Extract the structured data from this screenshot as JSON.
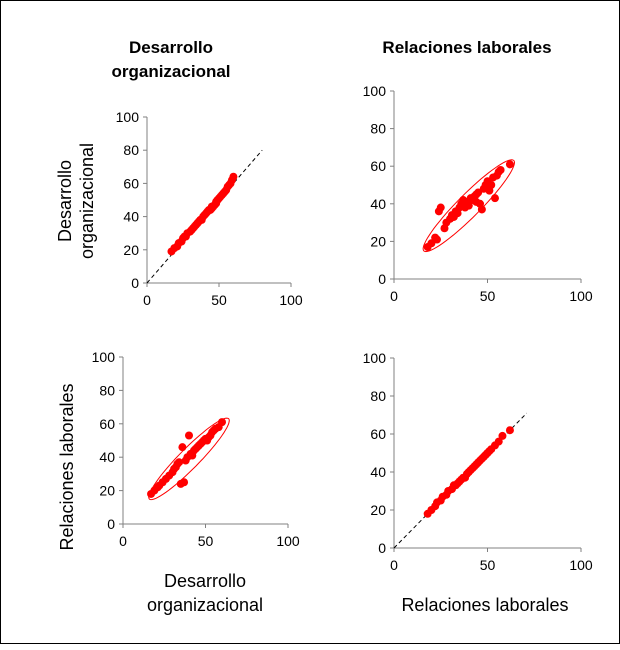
{
  "column_titles": [
    [
      "Desarrollo",
      "organizacional"
    ],
    [
      "Relaciones laborales"
    ]
  ],
  "row_axis_titles": [
    [
      "Desarrollo",
      "organizacional"
    ],
    [
      "Relaciones laborales"
    ]
  ],
  "x_axis_titles": [
    [
      "Desarrollo",
      "organizacional"
    ],
    [
      "Relaciones laborales"
    ]
  ],
  "colors": {
    "points": "#ff0000",
    "ellipse": "#ff0000",
    "reference_line": "#000000",
    "axis": "#808080"
  },
  "chart_data": [
    {
      "type": "scatter",
      "panel": "row1-col1",
      "xlim": [
        0,
        100
      ],
      "ylim": [
        0,
        100
      ],
      "xticks": [
        0,
        50,
        100
      ],
      "yticks": [
        0,
        20,
        40,
        60,
        80,
        100
      ],
      "reference_line": {
        "from": [
          0,
          0
        ],
        "to": [
          80,
          80
        ]
      },
      "ellipse": null,
      "points": [
        [
          17,
          19
        ],
        [
          19,
          21
        ],
        [
          21,
          22
        ],
        [
          22,
          24
        ],
        [
          24,
          25
        ],
        [
          25,
          27
        ],
        [
          27,
          28
        ],
        [
          28,
          30
        ],
        [
          30,
          31
        ],
        [
          31,
          32
        ],
        [
          33,
          34
        ],
        [
          34,
          35
        ],
        [
          35,
          36
        ],
        [
          36,
          37
        ],
        [
          38,
          38
        ],
        [
          39,
          40
        ],
        [
          40,
          41
        ],
        [
          41,
          42
        ],
        [
          42,
          43
        ],
        [
          43,
          44
        ],
        [
          44,
          44
        ],
        [
          45,
          45
        ],
        [
          46,
          46
        ],
        [
          47,
          47
        ],
        [
          48,
          48
        ],
        [
          49,
          50
        ],
        [
          50,
          51
        ],
        [
          51,
          52
        ],
        [
          52,
          53
        ],
        [
          53,
          54
        ],
        [
          54,
          55
        ],
        [
          55,
          56
        ],
        [
          56,
          58
        ],
        [
          57,
          59
        ],
        [
          58,
          60
        ],
        [
          59,
          62
        ],
        [
          60,
          64
        ],
        [
          26,
          28
        ],
        [
          32,
          33
        ],
        [
          37,
          38
        ],
        [
          45,
          46
        ],
        [
          48,
          49
        ]
      ]
    },
    {
      "type": "scatter",
      "panel": "row1-col2",
      "xlim": [
        0,
        100
      ],
      "ylim": [
        0,
        100
      ],
      "xticks": [
        0,
        50,
        100
      ],
      "yticks": [
        0,
        20,
        40,
        60,
        80,
        100
      ],
      "reference_line": null,
      "ellipse": {
        "center": [
          40,
          39
        ],
        "semi_major": 34,
        "semi_minor": 6,
        "angle_deg": 45
      },
      "points": [
        [
          18,
          17
        ],
        [
          20,
          19
        ],
        [
          22,
          22
        ],
        [
          23,
          21
        ],
        [
          24,
          36
        ],
        [
          25,
          38
        ],
        [
          27,
          27
        ],
        [
          28,
          30
        ],
        [
          30,
          32
        ],
        [
          31,
          34
        ],
        [
          32,
          33
        ],
        [
          33,
          36
        ],
        [
          34,
          35
        ],
        [
          35,
          38
        ],
        [
          36,
          40
        ],
        [
          37,
          42
        ],
        [
          38,
          38
        ],
        [
          39,
          41
        ],
        [
          40,
          39
        ],
        [
          41,
          43
        ],
        [
          42,
          42
        ],
        [
          43,
          44
        ],
        [
          44,
          41
        ],
        [
          45,
          46
        ],
        [
          46,
          40
        ],
        [
          47,
          37
        ],
        [
          48,
          48
        ],
        [
          49,
          50
        ],
        [
          50,
          52
        ],
        [
          51,
          47
        ],
        [
          52,
          50
        ],
        [
          53,
          54
        ],
        [
          54,
          43
        ],
        [
          55,
          55
        ],
        [
          56,
          57
        ],
        [
          57,
          58
        ],
        [
          62,
          61
        ],
        [
          44,
          45
        ]
      ]
    },
    {
      "type": "scatter",
      "panel": "row2-col1",
      "xlim": [
        0,
        100
      ],
      "ylim": [
        0,
        100
      ],
      "xticks": [
        0,
        50,
        100
      ],
      "yticks": [
        0,
        20,
        40,
        60,
        80,
        100
      ],
      "reference_line": null,
      "ellipse": {
        "center": [
          40,
          39
        ],
        "semi_major": 34,
        "semi_minor": 6,
        "angle_deg": 45
      },
      "points": [
        [
          17,
          18
        ],
        [
          19,
          20
        ],
        [
          21,
          22
        ],
        [
          22,
          23
        ],
        [
          24,
          25
        ],
        [
          26,
          27
        ],
        [
          28,
          29
        ],
        [
          30,
          31
        ],
        [
          31,
          33
        ],
        [
          32,
          34
        ],
        [
          33,
          36
        ],
        [
          34,
          37
        ],
        [
          35,
          24
        ],
        [
          36,
          46
        ],
        [
          37,
          25
        ],
        [
          38,
          38
        ],
        [
          39,
          40
        ],
        [
          40,
          53
        ],
        [
          41,
          42
        ],
        [
          42,
          41
        ],
        [
          43,
          44
        ],
        [
          44,
          45
        ],
        [
          45,
          46
        ],
        [
          46,
          47
        ],
        [
          47,
          48
        ],
        [
          48,
          49
        ],
        [
          49,
          50
        ],
        [
          50,
          51
        ],
        [
          51,
          50
        ],
        [
          52,
          52
        ],
        [
          53,
          53
        ],
        [
          54,
          55
        ],
        [
          55,
          56
        ],
        [
          56,
          57
        ],
        [
          58,
          58
        ],
        [
          60,
          61
        ]
      ]
    },
    {
      "type": "scatter",
      "panel": "row2-col2",
      "xlim": [
        0,
        100
      ],
      "ylim": [
        0,
        100
      ],
      "xticks": [
        0,
        50,
        100
      ],
      "yticks": [
        0,
        20,
        40,
        60,
        80,
        100
      ],
      "reference_line": {
        "from": [
          0,
          0
        ],
        "to": [
          71,
          71
        ]
      },
      "ellipse": null,
      "points": [
        [
          18,
          18
        ],
        [
          20,
          20
        ],
        [
          22,
          22
        ],
        [
          23,
          24
        ],
        [
          25,
          25
        ],
        [
          26,
          27
        ],
        [
          28,
          28
        ],
        [
          29,
          30
        ],
        [
          31,
          31
        ],
        [
          32,
          33
        ],
        [
          34,
          34
        ],
        [
          35,
          35
        ],
        [
          36,
          36
        ],
        [
          38,
          37
        ],
        [
          39,
          39
        ],
        [
          40,
          40
        ],
        [
          41,
          41
        ],
        [
          42,
          42
        ],
        [
          43,
          43
        ],
        [
          44,
          44
        ],
        [
          45,
          45
        ],
        [
          46,
          46
        ],
        [
          47,
          47
        ],
        [
          48,
          48
        ],
        [
          49,
          49
        ],
        [
          50,
          50
        ],
        [
          51,
          51
        ],
        [
          52,
          52
        ],
        [
          54,
          54
        ],
        [
          56,
          56
        ],
        [
          58,
          59
        ],
        [
          62,
          62
        ],
        [
          33,
          33
        ],
        [
          37,
          37
        ]
      ]
    }
  ]
}
